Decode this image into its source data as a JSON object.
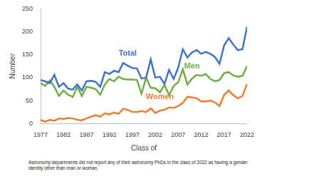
{
  "chart_data": {
    "type": "line",
    "x_label": "Class of",
    "y_label": "Number",
    "x": [
      1977,
      1978,
      1979,
      1980,
      1981,
      1982,
      1983,
      1984,
      1985,
      1986,
      1987,
      1988,
      1989,
      1990,
      1991,
      1992,
      1993,
      1994,
      1995,
      1996,
      1997,
      1998,
      1999,
      2000,
      2001,
      2002,
      2003,
      2004,
      2005,
      2006,
      2007,
      2008,
      2009,
      2010,
      2011,
      2012,
      2013,
      2014,
      2015,
      2016,
      2017,
      2018,
      2019,
      2020,
      2021,
      2022
    ],
    "series": [
      {
        "name": "Total",
        "color": "#4472c4",
        "values": [
          95,
          92,
          88,
          106,
          80,
          88,
          76,
          74,
          85,
          72,
          92,
          93,
          91,
          80,
          112,
          108,
          115,
          112,
          132,
          126,
          121,
          120,
          98,
          100,
          140,
          100,
          102,
          86,
          117,
          97,
          122,
          162,
          144,
          155,
          160,
          152,
          156,
          152,
          145,
          130,
          170,
          186,
          172,
          160,
          162,
          211
        ]
      },
      {
        "name": "Men",
        "color": "#70ad47",
        "values": [
          88,
          82,
          94,
          80,
          60,
          72,
          63,
          58,
          80,
          60,
          80,
          78,
          75,
          63,
          85,
          97,
          92,
          102,
          97,
          96,
          96,
          95,
          65,
          100,
          78,
          77,
          68,
          84,
          62,
          82,
          90,
          118,
          85,
          98,
          106,
          104,
          108,
          97,
          92,
          95,
          110,
          112,
          105,
          102,
          104,
          125
        ]
      },
      {
        "name": "Women",
        "color": "#ed7d31",
        "values": [
          8,
          4,
          8,
          6,
          11,
          10,
          12,
          11,
          8,
          7,
          11,
          15,
          18,
          15,
          22,
          20,
          24,
          21,
          32,
          30,
          25,
          25,
          27,
          25,
          33,
          23,
          28,
          30,
          35,
          34,
          38,
          45,
          58,
          57,
          55,
          48,
          48,
          50,
          46,
          38,
          62,
          72,
          62,
          55,
          60,
          86
        ]
      }
    ],
    "xlim": [
      1977,
      2022
    ],
    "xticks": [
      1977,
      1982,
      1987,
      1992,
      1997,
      2002,
      2007,
      2012,
      2017,
      2022
    ],
    "ylim": [
      0,
      250
    ],
    "yticks": [
      0,
      50,
      100,
      150,
      200,
      250
    ],
    "grid": false,
    "note": "Astronomy departments did not report any of their astronomy PhDs in the class of 2022 as having a gender identity other than man or woman."
  }
}
